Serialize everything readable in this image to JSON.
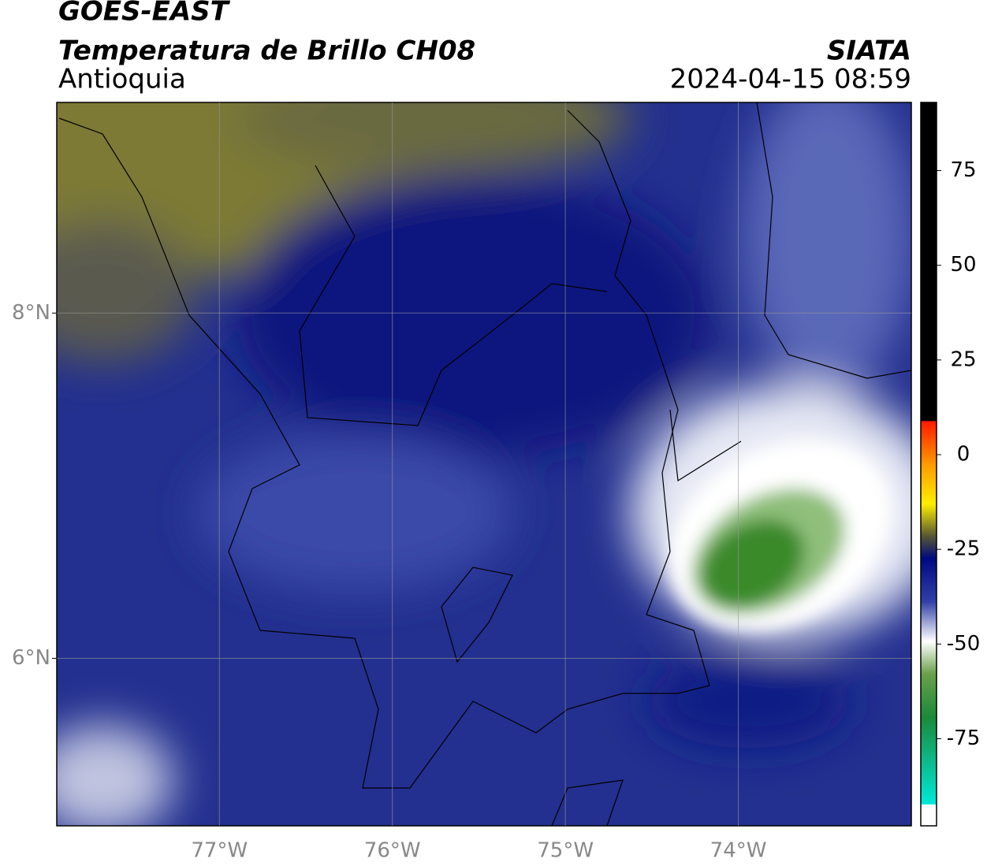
{
  "header": {
    "title": "GOES-EAST",
    "subtitle": "Temperatura de Brillo CH08",
    "region": "Antioquia",
    "source": "SIATA",
    "datetime": "2024-04-15 08:59"
  },
  "map": {
    "xlim": [
      -77.94,
      -73.0
    ],
    "ylim": [
      5.03,
      9.22
    ],
    "xticks": [
      {
        "value": -77,
        "label": "77°W"
      },
      {
        "value": -76,
        "label": "76°W"
      },
      {
        "value": -75,
        "label": "75°W"
      },
      {
        "value": -74,
        "label": "74°W"
      }
    ],
    "yticks": [
      {
        "value": 8,
        "label": "8°N"
      },
      {
        "value": 6,
        "label": "6°N"
      }
    ],
    "grid": true
  },
  "colorbar": {
    "lim": [
      -98,
      93
    ],
    "ticks": [
      75,
      50,
      25,
      0,
      -25,
      -50,
      -75
    ]
  }
}
